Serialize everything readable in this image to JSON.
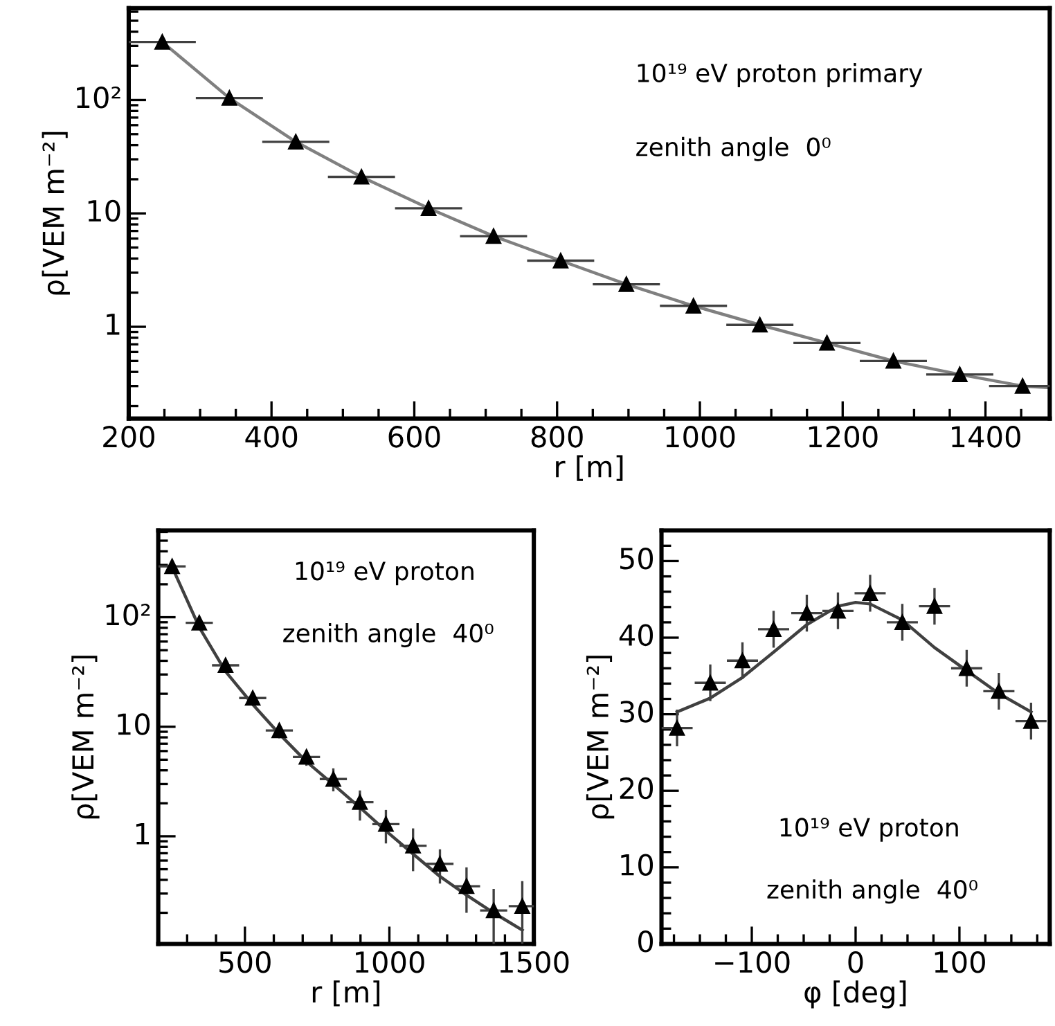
{
  "chart_data": [
    {
      "type": "scatter",
      "xlabel": "r [m]",
      "ylabel": "ρ[VEM m⁻²]",
      "log": "y",
      "xlim": [
        200,
        1490
      ],
      "ylim": [
        0.155,
        645
      ],
      "xticks": [
        200,
        400,
        600,
        800,
        1000,
        1200,
        1400
      ],
      "yticks": [
        1,
        10,
        {
          "value": 100,
          "label": "10²"
        }
      ],
      "grid": false,
      "annotations": [
        "10¹⁹ eV proton primary",
        "zenith angle  0⁰"
      ],
      "series": [
        {
          "marker": "triangle",
          "color": "#000000",
          "x": [
            247,
            341,
            434,
            526,
            620,
            711,
            805,
            897,
            991,
            1084,
            1178,
            1271,
            1364,
            1452
          ],
          "values": [
            325,
            104,
            42.8,
            21,
            11.1,
            6.3,
            3.83,
            2.37,
            1.53,
            1.04,
            0.72,
            0.5,
            0.38,
            0.3
          ],
          "xerrors": [
            47,
            47,
            47,
            47,
            47,
            47,
            47,
            47,
            47,
            47,
            47,
            47,
            47,
            47
          ]
        },
        {
          "type": "line",
          "color": "#808080",
          "x": [
            247,
            341,
            434,
            526,
            620,
            711,
            805,
            897,
            991,
            1084,
            1178,
            1271,
            1364,
            1452,
            1490
          ],
          "values": [
            325,
            104,
            42.8,
            21,
            11.1,
            6.3,
            3.83,
            2.37,
            1.53,
            1.04,
            0.72,
            0.5,
            0.38,
            0.3,
            0.29
          ]
        }
      ]
    },
    {
      "type": "scatter",
      "xlabel": "r [m]",
      "ylabel": "ρ[VEM m⁻²]",
      "log": "y",
      "xlim": [
        200,
        1500
      ],
      "ylim": [
        0.104,
        620
      ],
      "xticks": [
        500,
        1000,
        1500
      ],
      "yticks": [
        1,
        10,
        {
          "value": 100,
          "label": "10²"
        }
      ],
      "grid": false,
      "annotations": [
        "10¹⁹ eV proton",
        "zenith angle  40⁰"
      ],
      "series": [
        {
          "marker": "triangle",
          "color": "#000000",
          "x": [
            248,
            342,
            433,
            527,
            619,
            713,
            806,
            898,
            988,
            1082,
            1175,
            1267,
            1361,
            1460
          ],
          "values": [
            291,
            89,
            36.4,
            18.3,
            9.25,
            5.3,
            3.33,
            2.05,
            1.29,
            0.82,
            0.56,
            0.35,
            0.21,
            0.23
          ],
          "xerrors": [
            47,
            47,
            47,
            47,
            47,
            47,
            47,
            47,
            47,
            47,
            47,
            47,
            47,
            47
          ],
          "errors": [
            null,
            null,
            null,
            null,
            [
              7.84,
              10.7
            ],
            [
              4.4,
              6.15
            ],
            [
              2.57,
              4.17
            ],
            [
              1.39,
              2.62
            ],
            [
              0.86,
              1.74
            ],
            [
              0.48,
              1.18
            ],
            [
              0.37,
              0.76
            ],
            [
              0.2,
              0.52
            ],
            [
              0.104,
              0.33
            ],
            [
              0.104,
              0.39
            ]
          ]
        },
        {
          "type": "line",
          "color": "#404040",
          "x": [
            250,
            342,
            433,
            527,
            619,
            713,
            806,
            898,
            988,
            1082,
            1175,
            1267,
            1361,
            1460
          ],
          "values": [
            280,
            81,
            32,
            16,
            8.6,
            4.8,
            2.97,
            1.83,
            1.12,
            0.69,
            0.43,
            0.29,
            0.2,
            0.139
          ]
        }
      ]
    },
    {
      "type": "scatter",
      "xlabel": "φ [deg]",
      "ylabel": "ρ[VEM m⁻²]",
      "xlim": [
        -187,
        187
      ],
      "ylim": [
        0,
        54
      ],
      "xticks": [
        {
          "value": -100,
          "label": "−100"
        },
        0,
        100
      ],
      "yticks": [
        0,
        10,
        20,
        30,
        40,
        50
      ],
      "grid": false,
      "annotations": [
        "10¹⁹ eV proton",
        "zenith angle  40⁰"
      ],
      "series": [
        {
          "marker": "triangle",
          "color": "#000000",
          "x": [
            -172,
            -140,
            -109,
            -79,
            -47,
            -17,
            14,
            45,
            76,
            107,
            138,
            169
          ],
          "values": [
            28.2,
            34.1,
            37.0,
            41.1,
            43.2,
            43.5,
            45.8,
            42.0,
            44.1,
            36.0,
            33.0,
            29.1
          ],
          "xerrors": [
            15,
            15,
            15,
            15,
            15,
            15,
            15,
            15,
            15,
            15,
            15,
            15
          ],
          "errors": [
            2.4,
            2.4,
            2.4,
            2.4,
            2.4,
            2.4,
            2.4,
            2.4,
            2.4,
            2.4,
            2.4,
            2.4
          ]
        },
        {
          "type": "line",
          "color": "#404040",
          "x": [
            -172,
            -140,
            -109,
            -79,
            -47,
            -17,
            0,
            14,
            45,
            76,
            107,
            138,
            169
          ],
          "values": [
            30.3,
            32.1,
            34.8,
            38.1,
            41.7,
            44.1,
            44.6,
            44.4,
            42.3,
            38.7,
            35.7,
            32.7,
            30.3
          ]
        }
      ]
    }
  ]
}
